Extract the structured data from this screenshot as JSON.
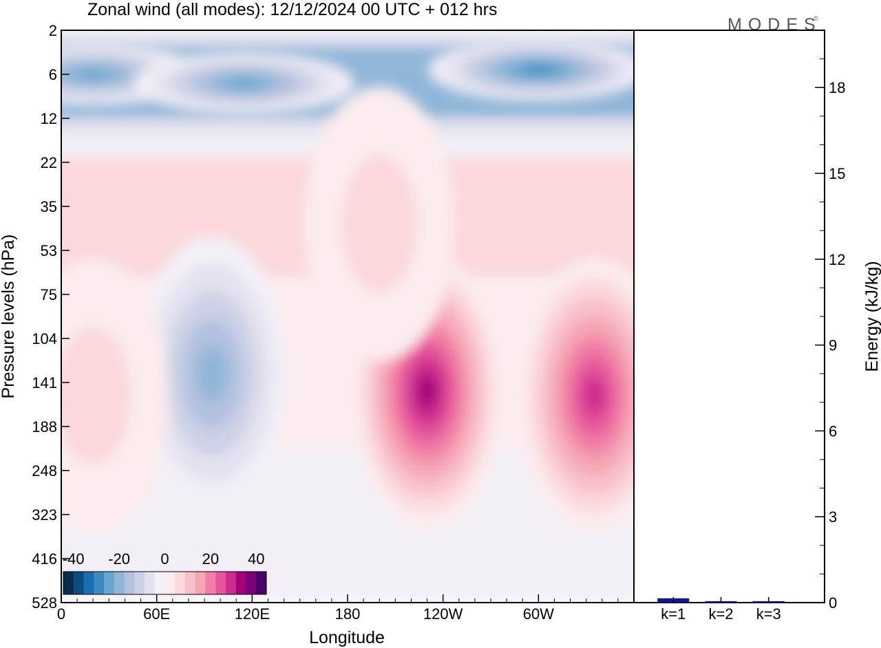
{
  "header": {
    "title": "Zonal wind (all modes):  12/12/2024  00 UTC  + 012 hrs",
    "logo_text": "MODES",
    "logo_mark": "©"
  },
  "colors": {
    "negative": [
      "#0b2d4c",
      "#0d4d7e",
      "#1570ad",
      "#3b8bc2",
      "#66a6cf",
      "#8fb6d8",
      "#b2c1de",
      "#ccd1e6",
      "#e4e2ef",
      "#f3eff6"
    ],
    "positive": [
      "#fbecee",
      "#fbd8da",
      "#f8bfc6",
      "#f5a4b2",
      "#f17ea6",
      "#e5559b",
      "#cc2c8c",
      "#a3027a",
      "#7a0177",
      "#4a026b"
    ],
    "frame": "#000000",
    "bar": "#14148c"
  },
  "chart_data": [
    {
      "type": "heatmap",
      "title": "Zonal wind (all modes):  12/12/2024  00 UTC  + 012 hrs",
      "xlabel": "Longitude",
      "ylabel": "Pressure levels (hPa)",
      "x_ticks": [
        "0",
        "60E",
        "120E",
        "180",
        "120W",
        "60W"
      ],
      "x_tick_values": [
        0,
        60,
        120,
        180,
        240,
        300
      ],
      "x_range": [
        0,
        360
      ],
      "y_ticks": [
        "2",
        "6",
        "12",
        "22",
        "35",
        "53",
        "75",
        "104",
        "141",
        "188",
        "248",
        "323",
        "416",
        "528"
      ],
      "colorbar": {
        "labels": [
          "-40",
          "-20",
          "0",
          "20",
          "40"
        ],
        "range": [
          -45,
          45
        ],
        "step": 5
      },
      "features": [
        {
          "lon": 20,
          "level_index": 1.0,
          "value": -30
        },
        {
          "lon": 115,
          "level_index": 1.2,
          "value": -30
        },
        {
          "lon": 300,
          "level_index": 0.9,
          "value": -35
        },
        {
          "lon": 95,
          "level_index": 7.8,
          "value": -25
        },
        {
          "lon": 230,
          "level_index": 8.2,
          "value": 40
        },
        {
          "lon": 335,
          "level_index": 8.3,
          "value": 35
        },
        {
          "lon": 200,
          "level_index": 4.4,
          "value": 10
        },
        {
          "lon": 20,
          "level_index": 8.3,
          "value": 10
        }
      ]
    },
    {
      "type": "bar",
      "ylabel": "Energy (kJ/kg)",
      "categories": [
        "k=1",
        "k=2",
        "k=3"
      ],
      "values": [
        0.15,
        0.05,
        0.05
      ],
      "y_ticks": [
        "0",
        "3",
        "6",
        "9",
        "12",
        "15",
        "18"
      ],
      "ylim": [
        0,
        20
      ]
    }
  ]
}
